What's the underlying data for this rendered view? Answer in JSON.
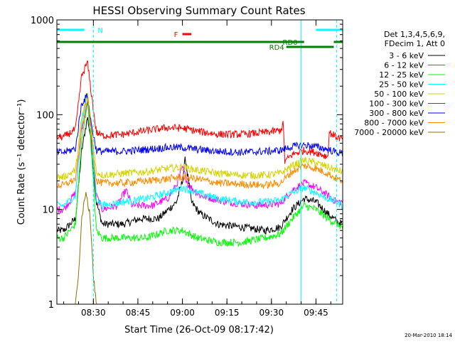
{
  "chart_data": {
    "type": "line",
    "title": "HESSI Observing Summary Count Rates",
    "xlabel": "Start Time (26-Oct-09 08:17:42)",
    "ylabel": "Count Rate (s⁻¹ detector⁻¹)",
    "yscale": "log",
    "ylim": [
      1,
      1000
    ],
    "xlim": [
      "08:17:42",
      "09:54:00"
    ],
    "x_ticks": [
      "08:30",
      "08:45",
      "09:00",
      "09:15",
      "09:30",
      "09:45"
    ],
    "y_ticks": [
      "1",
      "10",
      "100",
      "1000"
    ],
    "grid": false,
    "legend_header": [
      "Det 1,3,4,5,6,9,",
      "FDecim 1, Att 0"
    ],
    "series": [
      {
        "name": "3 - 6 keV",
        "color": "#000000",
        "points": [
          [
            "08:17:42",
            6
          ],
          [
            "08:20",
            6
          ],
          [
            "08:24",
            8
          ],
          [
            "08:26",
            40
          ],
          [
            "08:28",
            95
          ],
          [
            "08:29",
            60
          ],
          [
            "08:31",
            12
          ],
          [
            "08:33",
            7
          ],
          [
            "08:40",
            7
          ],
          [
            "08:46",
            8
          ],
          [
            "08:52",
            8
          ],
          [
            "08:58",
            12
          ],
          [
            "09:00",
            20
          ],
          [
            "09:01",
            35
          ],
          [
            "09:03",
            12
          ],
          [
            "09:06",
            9
          ],
          [
            "09:12",
            7
          ],
          [
            "09:20",
            6.5
          ],
          [
            "09:28",
            6
          ],
          [
            "09:33",
            6.5
          ],
          [
            "09:37",
            10
          ],
          [
            "09:41",
            13
          ],
          [
            "09:45",
            12
          ],
          [
            "09:49",
            9
          ],
          [
            "09:52",
            7.5
          ],
          [
            "09:54",
            7
          ]
        ]
      },
      {
        "name": "6 - 12 keV",
        "color": "#ff00ff",
        "points": [
          [
            "08:17:42",
            10
          ],
          [
            "08:20",
            10
          ],
          [
            "08:24",
            15
          ],
          [
            "08:26",
            70
          ],
          [
            "08:28",
            130
          ],
          [
            "08:29",
            80
          ],
          [
            "08:31",
            14
          ],
          [
            "08:33",
            10
          ],
          [
            "08:38",
            11
          ],
          [
            "08:41",
            16
          ],
          [
            "08:43",
            11
          ],
          [
            "08:50",
            11
          ],
          [
            "08:55",
            13
          ],
          [
            "08:58",
            18
          ],
          [
            "09:00",
            28
          ],
          [
            "09:02",
            18
          ],
          [
            "09:06",
            14
          ],
          [
            "09:15",
            12
          ],
          [
            "09:25",
            11
          ],
          [
            "09:33",
            11.5
          ],
          [
            "09:37",
            16
          ],
          [
            "09:41",
            19
          ],
          [
            "09:45",
            17
          ],
          [
            "09:49",
            14
          ],
          [
            "09:52",
            12
          ],
          [
            "09:54",
            12
          ]
        ]
      },
      {
        "name": "12 - 25 keV",
        "color": "#00ff00",
        "points": [
          [
            "08:17:42",
            5
          ],
          [
            "08:20",
            5
          ],
          [
            "08:24",
            7
          ],
          [
            "08:26",
            50
          ],
          [
            "08:28",
            140
          ],
          [
            "08:29",
            60
          ],
          [
            "08:31",
            6
          ],
          [
            "08:33",
            5
          ],
          [
            "08:40",
            5
          ],
          [
            "08:48",
            5
          ],
          [
            "08:55",
            6
          ],
          [
            "09:00",
            6
          ],
          [
            "09:05",
            5
          ],
          [
            "09:12",
            4.5
          ],
          [
            "09:20",
            4.5
          ],
          [
            "09:28",
            5
          ],
          [
            "09:33",
            5.5
          ],
          [
            "09:37",
            8
          ],
          [
            "09:41",
            11
          ],
          [
            "09:45",
            10
          ],
          [
            "09:49",
            8
          ],
          [
            "09:52",
            7
          ],
          [
            "09:54",
            6.5
          ]
        ]
      },
      {
        "name": "25 - 50 keV",
        "color": "#00ffff",
        "points": [
          [
            "08:17:42",
            11
          ],
          [
            "08:20",
            11
          ],
          [
            "08:24",
            14
          ],
          [
            "08:26",
            80
          ],
          [
            "08:28",
            175
          ],
          [
            "08:29",
            90
          ],
          [
            "08:31",
            13
          ],
          [
            "08:33",
            11
          ],
          [
            "08:40",
            12
          ],
          [
            "08:48",
            13
          ],
          [
            "08:55",
            15
          ],
          [
            "09:00",
            17
          ],
          [
            "09:05",
            15
          ],
          [
            "09:12",
            13
          ],
          [
            "09:20",
            12
          ],
          [
            "09:28",
            12
          ],
          [
            "09:33",
            12.5
          ],
          [
            "09:37",
            15
          ],
          [
            "09:41",
            17
          ],
          [
            "09:45",
            15
          ],
          [
            "09:49",
            13
          ],
          [
            "09:52",
            12
          ],
          [
            "09:54",
            11
          ]
        ]
      },
      {
        "name": "50 - 100 keV",
        "color": "#d4d400",
        "points": [
          [
            "08:17:42",
            22
          ],
          [
            "08:20",
            22
          ],
          [
            "08:24",
            26
          ],
          [
            "08:26",
            90
          ],
          [
            "08:28",
            170
          ],
          [
            "08:29",
            90
          ],
          [
            "08:31",
            25
          ],
          [
            "08:33",
            23
          ],
          [
            "08:40",
            24
          ],
          [
            "08:48",
            25
          ],
          [
            "08:55",
            27
          ],
          [
            "09:00",
            28
          ],
          [
            "09:05",
            26
          ],
          [
            "09:12",
            24
          ],
          [
            "09:20",
            23
          ],
          [
            "09:28",
            23
          ],
          [
            "09:33",
            24
          ],
          [
            "09:37",
            29
          ],
          [
            "09:41",
            33
          ],
          [
            "09:45",
            31
          ],
          [
            "09:49",
            28
          ],
          [
            "09:52",
            26
          ],
          [
            "09:54",
            25
          ]
        ]
      },
      {
        "name": "100 - 300 keV",
        "color": "#ff0000",
        "points": [
          [
            "08:17:42",
            58
          ],
          [
            "08:20",
            58
          ],
          [
            "08:24",
            70
          ],
          [
            "08:26",
            250
          ],
          [
            "08:28",
            360
          ],
          [
            "08:29",
            200
          ],
          [
            "08:31",
            65
          ],
          [
            "08:33",
            60
          ],
          [
            "08:40",
            62
          ],
          [
            "08:48",
            68
          ],
          [
            "08:55",
            73
          ],
          [
            "09:00",
            72
          ],
          [
            "09:05",
            67
          ],
          [
            "09:12",
            62
          ],
          [
            "09:20",
            62
          ],
          [
            "09:28",
            65
          ],
          [
            "09:33",
            68
          ],
          [
            "09:34",
            80
          ],
          [
            "09:34:30",
            32
          ],
          [
            "09:37",
            38
          ],
          [
            "09:41",
            42
          ],
          [
            "09:45",
            40
          ],
          [
            "09:49",
            36
          ],
          [
            "09:49:30",
            65
          ],
          [
            "09:52",
            58
          ],
          [
            "09:54",
            55
          ]
        ]
      },
      {
        "name": "300 - 800 keV",
        "color": "#0000ff",
        "points": [
          [
            "08:17:42",
            40
          ],
          [
            "08:20",
            40
          ],
          [
            "08:24",
            44
          ],
          [
            "08:26",
            130
          ],
          [
            "08:28",
            160
          ],
          [
            "08:29",
            90
          ],
          [
            "08:31",
            42
          ],
          [
            "08:33",
            41
          ],
          [
            "08:40",
            41
          ],
          [
            "08:48",
            43
          ],
          [
            "08:55",
            45
          ],
          [
            "09:00",
            45
          ],
          [
            "09:05",
            43
          ],
          [
            "09:12",
            41
          ],
          [
            "09:20",
            40
          ],
          [
            "09:28",
            41
          ],
          [
            "09:33",
            42
          ],
          [
            "09:37",
            46
          ],
          [
            "09:41",
            48
          ],
          [
            "09:45",
            46
          ],
          [
            "09:49",
            43
          ],
          [
            "09:52",
            40
          ],
          [
            "09:54",
            39
          ]
        ]
      },
      {
        "name": "800 - 7000 keV",
        "color": "#ff8c00",
        "points": [
          [
            "08:17:42",
            18
          ],
          [
            "08:20",
            18
          ],
          [
            "08:24",
            21
          ],
          [
            "08:26",
            70
          ],
          [
            "08:28",
            150
          ],
          [
            "08:29",
            80
          ],
          [
            "08:31",
            20
          ],
          [
            "08:33",
            19
          ],
          [
            "08:40",
            19
          ],
          [
            "08:48",
            20
          ],
          [
            "08:55",
            21
          ],
          [
            "09:00",
            22
          ],
          [
            "09:05",
            21
          ],
          [
            "09:12",
            19
          ],
          [
            "09:20",
            18.5
          ],
          [
            "09:28",
            18
          ],
          [
            "09:33",
            19
          ],
          [
            "09:37",
            25
          ],
          [
            "09:41",
            29
          ],
          [
            "09:45",
            27
          ],
          [
            "09:49",
            24
          ],
          [
            "09:52",
            21
          ],
          [
            "09:54",
            20
          ]
        ]
      },
      {
        "name": "7000 - 20000 keV",
        "color": "#8b7300",
        "points": [
          [
            "08:17:42",
            1
          ],
          [
            "08:24",
            1
          ],
          [
            "08:25",
            2
          ],
          [
            "08:26",
            8
          ],
          [
            "08:27:30",
            16
          ],
          [
            "08:29",
            8
          ],
          [
            "08:30",
            2
          ],
          [
            "08:31",
            1
          ],
          [
            "09:54",
            1
          ]
        ]
      }
    ],
    "annotations": [
      {
        "label": "N",
        "color": "#00ffff",
        "bars": [
          [
            "08:17:42",
            "08:27"
          ],
          [
            "09:45",
            "09:54"
          ]
        ]
      },
      {
        "label": "F",
        "color": "#ff0000",
        "bars": [
          [
            "09:00",
            "09:03"
          ]
        ]
      },
      {
        "label": "RD0",
        "color": "#008000",
        "bars": [
          [
            "08:17:42",
            "09:41"
          ],
          [
            "09:51",
            "09:54"
          ]
        ]
      },
      {
        "label": "RD4",
        "color": "#008000",
        "bars": [
          [
            "09:35",
            "09:51"
          ]
        ]
      }
    ],
    "vlines": [
      {
        "time": "08:30",
        "color": "#00ffff",
        "style": "dashed"
      },
      {
        "time": "09:40",
        "color": "#00ffff",
        "style": "solid"
      },
      {
        "time": "09:52",
        "color": "#00ffff",
        "style": "dashed"
      }
    ],
    "footer_stamp": "20-Mar-2010 18:14"
  }
}
